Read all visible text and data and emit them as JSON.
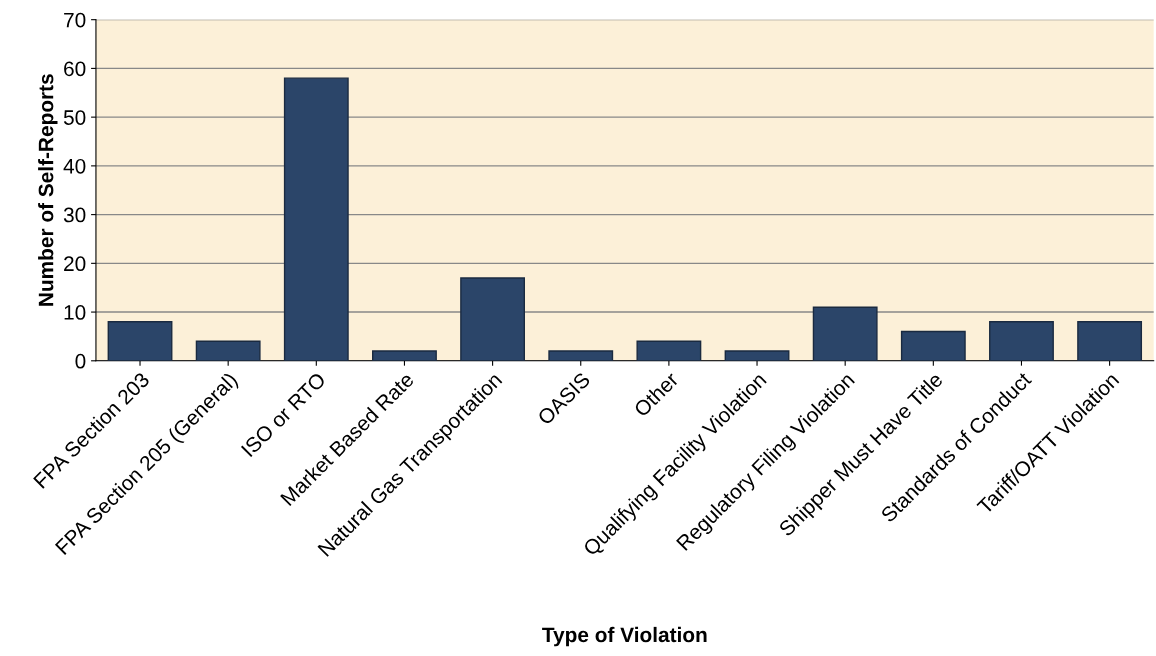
{
  "chart_data": {
    "type": "bar",
    "xlabel": "Type of Violation",
    "ylabel": "Number of Self-Reports",
    "categories": [
      "FPA Section 203",
      "FPA Section 205 (General)",
      "ISO or RTO",
      "Market Based Rate",
      "Natural Gas Transportation",
      "OASIS",
      "Other",
      "Qualifying Facility Violation",
      "Regulatory Filing Violation",
      "Shipper Must Have Title",
      "Standards of Conduct",
      "Tariff/OATT Violation"
    ],
    "values": [
      8,
      4,
      58,
      2,
      17,
      2,
      4,
      2,
      11,
      6,
      8,
      8
    ],
    "color": "#2b4569",
    "ylim": [
      0,
      70
    ],
    "yticks": [
      0,
      10,
      20,
      30,
      40,
      50,
      60,
      70
    ],
    "grid": "y",
    "legend": false
  }
}
